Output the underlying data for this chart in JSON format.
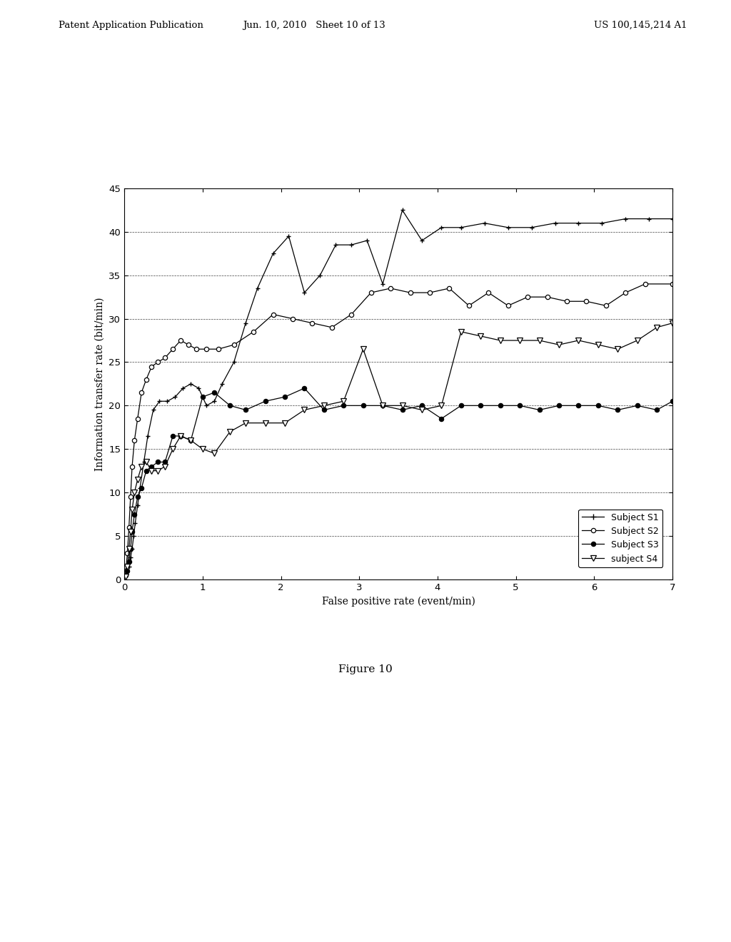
{
  "title": "",
  "xlabel": "False positive rate (event/min)",
  "ylabel": "Information transfer rate (bit/min)",
  "xlim": [
    0,
    7
  ],
  "ylim": [
    0,
    45
  ],
  "yticks": [
    0,
    5,
    10,
    15,
    20,
    25,
    30,
    35,
    40,
    45
  ],
  "xticks": [
    0,
    1,
    2,
    3,
    4,
    5,
    6,
    7
  ],
  "grid_y": [
    5,
    10,
    15,
    20,
    25,
    30,
    35,
    40
  ],
  "figure_caption": "Figure 10",
  "header_left": "Patent Application Publication",
  "header_center": "Jun. 10, 2010   Sheet 10 of 13",
  "header_right": "US 100,145,214 A1",
  "legend": [
    "Subject S1",
    "Subject S2",
    "Subject S3",
    "subject S4"
  ],
  "s1_x": [
    0.02,
    0.04,
    0.06,
    0.08,
    0.1,
    0.12,
    0.14,
    0.17,
    0.2,
    0.25,
    0.3,
    0.37,
    0.45,
    0.55,
    0.65,
    0.75,
    0.85,
    0.95,
    1.05,
    1.15,
    1.25,
    1.4,
    1.55,
    1.7,
    1.9,
    2.1,
    2.3,
    2.5,
    2.7,
    2.9,
    3.1,
    3.3,
    3.55,
    3.8,
    4.05,
    4.3,
    4.6,
    4.9,
    5.2,
    5.5,
    5.8,
    6.1,
    6.4,
    6.7,
    7.0
  ],
  "s1_y": [
    0.5,
    1.0,
    1.5,
    2.5,
    3.5,
    5.0,
    6.5,
    8.5,
    10.5,
    13.5,
    16.5,
    19.5,
    20.5,
    20.5,
    21.0,
    22.0,
    22.5,
    22.0,
    20.0,
    20.5,
    22.5,
    25.0,
    29.5,
    33.5,
    37.5,
    39.5,
    33.0,
    35.0,
    38.5,
    38.5,
    39.0,
    34.0,
    42.5,
    39.0,
    40.5,
    40.5,
    41.0,
    40.5,
    40.5,
    41.0,
    41.0,
    41.0,
    41.5,
    41.5,
    41.5
  ],
  "s2_x": [
    0.02,
    0.04,
    0.06,
    0.08,
    0.1,
    0.13,
    0.17,
    0.22,
    0.28,
    0.35,
    0.43,
    0.52,
    0.62,
    0.72,
    0.82,
    0.92,
    1.05,
    1.2,
    1.4,
    1.65,
    1.9,
    2.15,
    2.4,
    2.65,
    2.9,
    3.15,
    3.4,
    3.65,
    3.9,
    4.15,
    4.4,
    4.65,
    4.9,
    5.15,
    5.4,
    5.65,
    5.9,
    6.15,
    6.4,
    6.65,
    7.0
  ],
  "s2_y": [
    1.0,
    3.0,
    6.0,
    9.5,
    13.0,
    16.0,
    18.5,
    21.5,
    23.0,
    24.5,
    25.0,
    25.5,
    26.5,
    27.5,
    27.0,
    26.5,
    26.5,
    26.5,
    27.0,
    28.5,
    30.5,
    30.0,
    29.5,
    29.0,
    30.5,
    33.0,
    33.5,
    33.0,
    33.0,
    33.5,
    31.5,
    33.0,
    31.5,
    32.5,
    32.5,
    32.0,
    32.0,
    31.5,
    33.0,
    34.0,
    34.0
  ],
  "s3_x": [
    0.02,
    0.04,
    0.06,
    0.08,
    0.1,
    0.13,
    0.17,
    0.22,
    0.28,
    0.35,
    0.43,
    0.52,
    0.62,
    0.72,
    0.85,
    1.0,
    1.15,
    1.35,
    1.55,
    1.8,
    2.05,
    2.3,
    2.55,
    2.8,
    3.05,
    3.3,
    3.55,
    3.8,
    4.05,
    4.3,
    4.55,
    4.8,
    5.05,
    5.3,
    5.55,
    5.8,
    6.05,
    6.3,
    6.55,
    6.8,
    7.0
  ],
  "s3_y": [
    0.5,
    1.0,
    2.0,
    3.5,
    5.5,
    7.5,
    9.5,
    10.5,
    12.5,
    13.0,
    13.5,
    13.5,
    16.5,
    16.5,
    16.0,
    21.0,
    21.5,
    20.0,
    19.5,
    20.5,
    21.0,
    22.0,
    19.5,
    20.0,
    20.0,
    20.0,
    19.5,
    20.0,
    18.5,
    20.0,
    20.0,
    20.0,
    20.0,
    19.5,
    20.0,
    20.0,
    20.0,
    19.5,
    20.0,
    19.5,
    20.5
  ],
  "s4_x": [
    0.02,
    0.04,
    0.06,
    0.08,
    0.1,
    0.13,
    0.17,
    0.22,
    0.28,
    0.35,
    0.43,
    0.52,
    0.62,
    0.72,
    0.85,
    1.0,
    1.15,
    1.35,
    1.55,
    1.8,
    2.05,
    2.3,
    2.55,
    2.8,
    3.05,
    3.3,
    3.55,
    3.8,
    4.05,
    4.3,
    4.55,
    4.8,
    5.05,
    5.3,
    5.55,
    5.8,
    6.05,
    6.3,
    6.55,
    6.8,
    7.0
  ],
  "s4_y": [
    0.3,
    1.5,
    3.5,
    5.5,
    8.0,
    10.0,
    11.5,
    13.0,
    13.5,
    12.5,
    12.5,
    13.0,
    15.0,
    16.5,
    16.0,
    15.0,
    14.5,
    17.0,
    18.0,
    18.0,
    18.0,
    19.5,
    20.0,
    20.5,
    26.5,
    20.0,
    20.0,
    19.5,
    20.0,
    28.5,
    28.0,
    27.5,
    27.5,
    27.5,
    27.0,
    27.5,
    27.0,
    26.5,
    27.5,
    29.0,
    29.5
  ],
  "background_color": "#ffffff",
  "plot_bg_color": "#ffffff"
}
